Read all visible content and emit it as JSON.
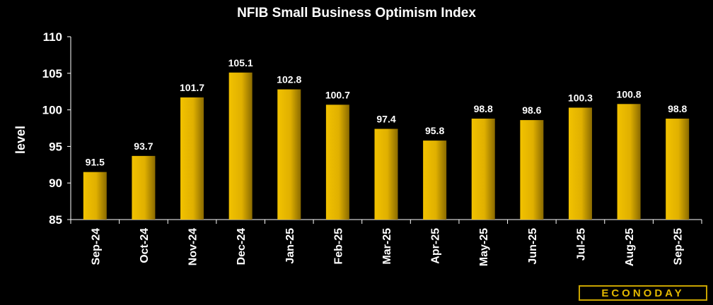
{
  "chart_data": {
    "type": "bar",
    "title": "NFIB Small Business Optimism Index",
    "xlabel": "",
    "ylabel": "level",
    "ylim": [
      85,
      110
    ],
    "yticks": [
      85,
      90,
      95,
      100,
      105,
      110
    ],
    "grid": false,
    "categories": [
      "Sep-24",
      "Oct-24",
      "Nov-24",
      "Dec-24",
      "Jan-25",
      "Feb-25",
      "Mar-25",
      "Apr-25",
      "May-25",
      "Jun-25",
      "Jul-25",
      "Aug-25",
      "Sep-25"
    ],
    "values": [
      91.5,
      93.7,
      101.7,
      105.1,
      102.8,
      100.7,
      97.4,
      95.8,
      98.8,
      98.6,
      100.3,
      100.8,
      98.8
    ],
    "value_labels": [
      "91.5",
      "93.7",
      "101.7",
      "105.1",
      "102.8",
      "100.7",
      "97.4",
      "95.8",
      "98.8",
      "98.6",
      "100.3",
      "100.8",
      "98.8"
    ],
    "colors": {
      "bar": "#f2c200",
      "bar_dark": "#8a6a00",
      "axis": "#ffffff",
      "background": "#000000"
    }
  },
  "branding": {
    "logo_text": "ECONODAY"
  }
}
